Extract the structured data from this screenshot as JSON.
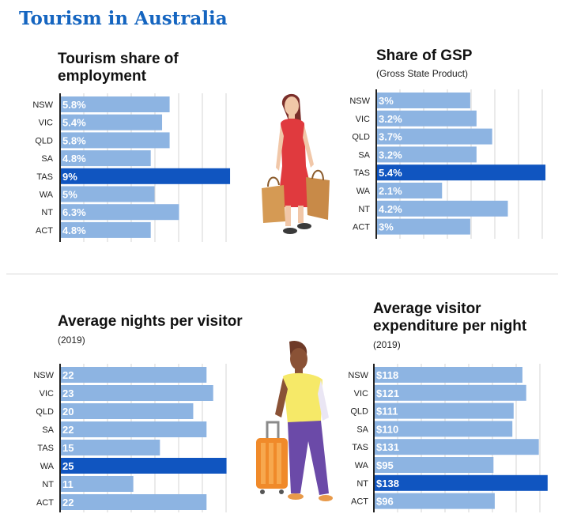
{
  "page": {
    "title": "Tourism in Australia"
  },
  "colors": {
    "bar": "#8db4e2",
    "highlight": "#1055c0",
    "grid": "#d6d6d6",
    "axis": "#222222",
    "title": "#1565c0"
  },
  "chart_data": [
    {
      "type": "bar",
      "orientation": "horizontal",
      "title": "Tourism share of employment",
      "subtitle": "",
      "categories": [
        "NSW",
        "VIC",
        "QLD",
        "SA",
        "TAS",
        "WA",
        "NT",
        "ACT"
      ],
      "values": [
        5.8,
        5.4,
        5.8,
        4.8,
        9,
        5,
        6.3,
        4.8
      ],
      "labels": [
        "5.8%",
        "5.4%",
        "5.8%",
        "4.8%",
        "9%",
        "5%",
        "6.3%",
        "4.8%"
      ],
      "highlight": "TAS",
      "xlim": [
        0,
        9.5
      ],
      "grid": true
    },
    {
      "type": "bar",
      "orientation": "horizontal",
      "title": "Share of GSP",
      "subtitle": "(Gross State Product)",
      "categories": [
        "NSW",
        "VIC",
        "QLD",
        "SA",
        "TAS",
        "WA",
        "NT",
        "ACT"
      ],
      "values": [
        3,
        3.2,
        3.7,
        3.2,
        5.4,
        2.1,
        4.2,
        3
      ],
      "labels": [
        "3%",
        "3.2%",
        "3.7%",
        "3.2%",
        "5.4%",
        "2.1%",
        "4.2%",
        "3%"
      ],
      "highlight": "TAS",
      "xlim": [
        0,
        5.6
      ],
      "grid": true
    },
    {
      "type": "bar",
      "orientation": "horizontal",
      "title": "Average nights per visitor",
      "subtitle": "(2019)",
      "categories": [
        "NSW",
        "VIC",
        "QLD",
        "SA",
        "TAS",
        "WA",
        "NT",
        "ACT"
      ],
      "values": [
        22,
        23,
        20,
        22,
        15,
        25,
        11,
        22
      ],
      "labels": [
        "22",
        "23",
        "20",
        "22",
        "15",
        "25",
        "11",
        "22"
      ],
      "highlight": "WA",
      "xlim": [
        0,
        26
      ],
      "grid": true
    },
    {
      "type": "bar",
      "orientation": "horizontal",
      "title": "Average visitor expenditure per night",
      "subtitle": "(2019)",
      "categories": [
        "NSW",
        "VIC",
        "QLD",
        "SA",
        "TAS",
        "WA",
        "NT",
        "ACT"
      ],
      "values": [
        118,
        121,
        111,
        110,
        131,
        95,
        138,
        96
      ],
      "labels": [
        "$118",
        "$121",
        "$111",
        "$110",
        "$131",
        "$95",
        "$138",
        "$96"
      ],
      "highlight": "NT",
      "xlim": [
        0,
        140
      ],
      "grid": true
    }
  ],
  "illustrations": {
    "top": "woman-with-shopping-bags-icon",
    "bottom": "traveler-with-suitcase-icon"
  }
}
